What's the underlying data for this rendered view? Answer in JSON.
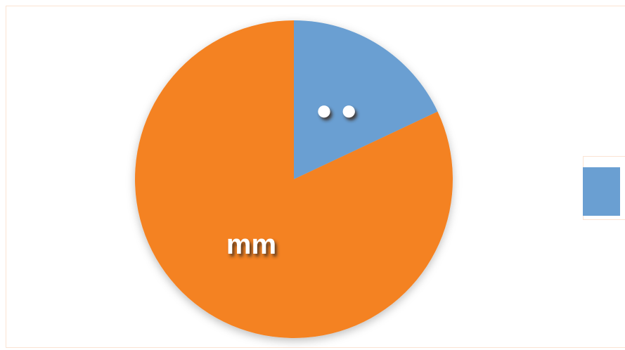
{
  "chart_data": {
    "type": "pie",
    "categories": [
      "● ●",
      "mm"
    ],
    "values": [
      18,
      82
    ],
    "colors": [
      "#6a9fd2",
      "#f48224"
    ],
    "legend": "right"
  }
}
